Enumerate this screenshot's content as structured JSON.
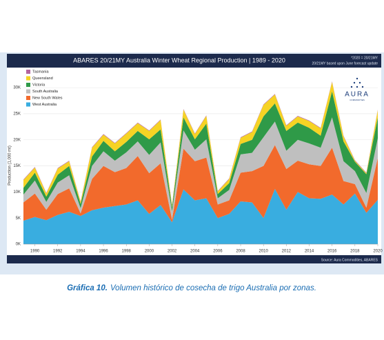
{
  "chart_data": {
    "type": "stacked_area",
    "title": "ABARES 20/21MY Australia Winter Wheat Regional Production | 1989 - 2020",
    "notes": [
      "*2020 = 20/21MY",
      "20/21MY based upon June forecast update"
    ],
    "source": "Source: Aura Commodities, ABARES",
    "logo": {
      "name": "AURA",
      "tagline": "COMMODITIES"
    },
    "y_label": "Production (1,000 mt)",
    "x": [
      1989,
      1990,
      1991,
      1992,
      1993,
      1994,
      1995,
      1996,
      1997,
      1998,
      1999,
      2000,
      2001,
      2002,
      2003,
      2004,
      2005,
      2006,
      2007,
      2008,
      2009,
      2010,
      2011,
      2012,
      2013,
      2014,
      2015,
      2016,
      2017,
      2018,
      2019,
      2020
    ],
    "xlim": [
      1989,
      2020
    ],
    "xticks": [
      1990,
      1992,
      1994,
      1996,
      1998,
      2000,
      2002,
      2004,
      2006,
      2008,
      2010,
      2012,
      2014,
      2016,
      2018,
      2020
    ],
    "ylim": [
      0,
      32000
    ],
    "yticks": [
      {
        "value": 0,
        "label": "0K"
      },
      {
        "value": 5000,
        "label": "5K"
      },
      {
        "value": 10000,
        "label": "10K"
      },
      {
        "value": 15000,
        "label": "15K"
      },
      {
        "value": 20000,
        "label": "20K"
      },
      {
        "value": 25000,
        "label": "25K"
      },
      {
        "value": 30000,
        "label": "30K"
      }
    ],
    "grid": true,
    "legend": "upper left",
    "series": [
      {
        "name": "West Australia",
        "color": "#39ade0",
        "values": [
          4500,
          5200,
          4600,
          5600,
          6200,
          5400,
          6500,
          7000,
          7300,
          7600,
          8400,
          5800,
          7500,
          4200,
          10500,
          8400,
          8800,
          5000,
          5800,
          8200,
          8000,
          5000,
          10600,
          6600,
          10000,
          8800,
          8700,
          9500,
          7600,
          9700,
          6000,
          8500
        ]
      },
      {
        "name": "New South Wales",
        "color": "#f26a2c",
        "values": [
          3500,
          4500,
          2000,
          4000,
          4500,
          500,
          6000,
          8000,
          6500,
          7000,
          8500,
          7800,
          8000,
          500,
          7800,
          7500,
          7800,
          2600,
          2600,
          5500,
          6000,
          10000,
          8400,
          7800,
          6000,
          6500,
          6300,
          9000,
          4500,
          1800,
          1000,
          8000
        ]
      },
      {
        "name": "South Australia",
        "color": "#bfbfbf",
        "values": [
          1500,
          2500,
          1500,
          2200,
          2500,
          1000,
          2500,
          2800,
          2200,
          3000,
          2800,
          3500,
          4000,
          1600,
          3500,
          2200,
          3500,
          1200,
          2000,
          3500,
          3500,
          5500,
          4500,
          3500,
          4000,
          4000,
          3500,
          5800,
          3800,
          2500,
          2800,
          3800
        ]
      },
      {
        "name": "Victoria",
        "color": "#2f9a48",
        "values": [
          1300,
          1500,
          1000,
          1500,
          1800,
          800,
          1800,
          2000,
          1800,
          2000,
          2000,
          3000,
          2500,
          800,
          2500,
          2000,
          3000,
          800,
          1300,
          2000,
          2500,
          4000,
          3500,
          3800,
          3300,
          3000,
          2300,
          5000,
          3800,
          1800,
          3600,
          4000
        ]
      },
      {
        "name": "Queensland",
        "color": "#f6d324",
        "values": [
          1500,
          1000,
          600,
          1200,
          900,
          400,
          1700,
          1200,
          1500,
          1600,
          1500,
          1600,
          1800,
          300,
          1500,
          1000,
          1500,
          500,
          800,
          1200,
          1500,
          2200,
          1700,
          1000,
          1200,
          1300,
          1400,
          1800,
          1000,
          200,
          200,
          1400
        ]
      },
      {
        "name": "Tasmania",
        "color": "#b3659f",
        "values": [
          100,
          100,
          100,
          100,
          100,
          100,
          100,
          100,
          100,
          100,
          100,
          100,
          100,
          100,
          100,
          100,
          100,
          100,
          100,
          100,
          100,
          100,
          100,
          100,
          100,
          100,
          100,
          100,
          100,
          100,
          100,
          100
        ]
      }
    ]
  },
  "caption": {
    "label": "Gráfica 10.",
    "text": "Volumen histórico de cosecha de trigo Australia por zonas."
  }
}
